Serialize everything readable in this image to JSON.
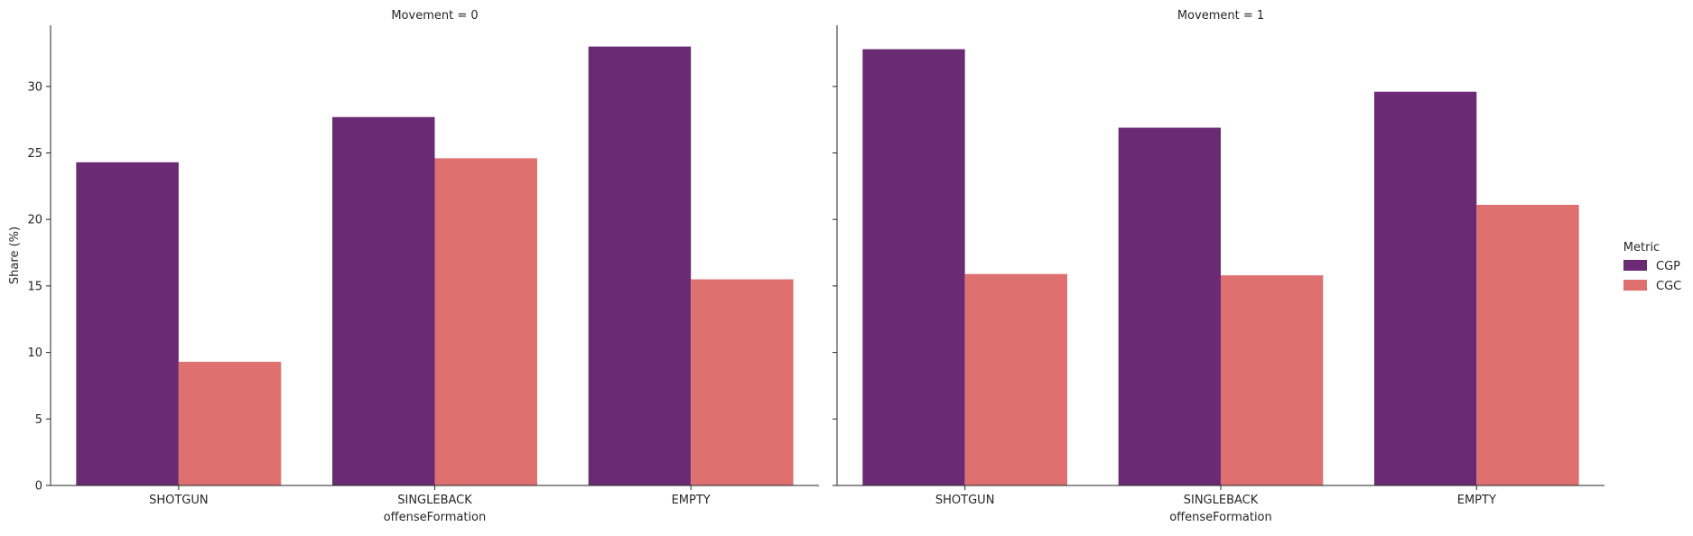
{
  "chart_data": {
    "type": "bar",
    "layout": "faceted columns",
    "facet_variable": "Movement",
    "facets": [
      {
        "title": "Movement = 0",
        "categories": [
          "SHOTGUN",
          "SINGLEBACK",
          "EMPTY"
        ],
        "series": [
          {
            "name": "CGP",
            "values": [
              24.3,
              27.7,
              33.0
            ]
          },
          {
            "name": "CGC",
            "values": [
              9.3,
              24.6,
              15.5
            ]
          }
        ]
      },
      {
        "title": "Movement = 1",
        "categories": [
          "SHOTGUN",
          "SINGLEBACK",
          "EMPTY"
        ],
        "series": [
          {
            "name": "CGP",
            "values": [
              32.8,
              26.9,
              29.6
            ]
          },
          {
            "name": "CGC",
            "values": [
              15.9,
              15.8,
              21.1
            ]
          }
        ]
      }
    ],
    "xlabel": "offenseFormation",
    "ylabel": "Share (%)",
    "ylim": [
      0,
      34.6
    ],
    "yticks": [
      0,
      5,
      10,
      15,
      20,
      25,
      30
    ],
    "grid": false,
    "legend": {
      "title": "Metric",
      "placement": "right",
      "entries": [
        "CGP",
        "CGC"
      ]
    },
    "colors": {
      "CGP": "#6a2a74",
      "CGC": "#df7070"
    }
  }
}
